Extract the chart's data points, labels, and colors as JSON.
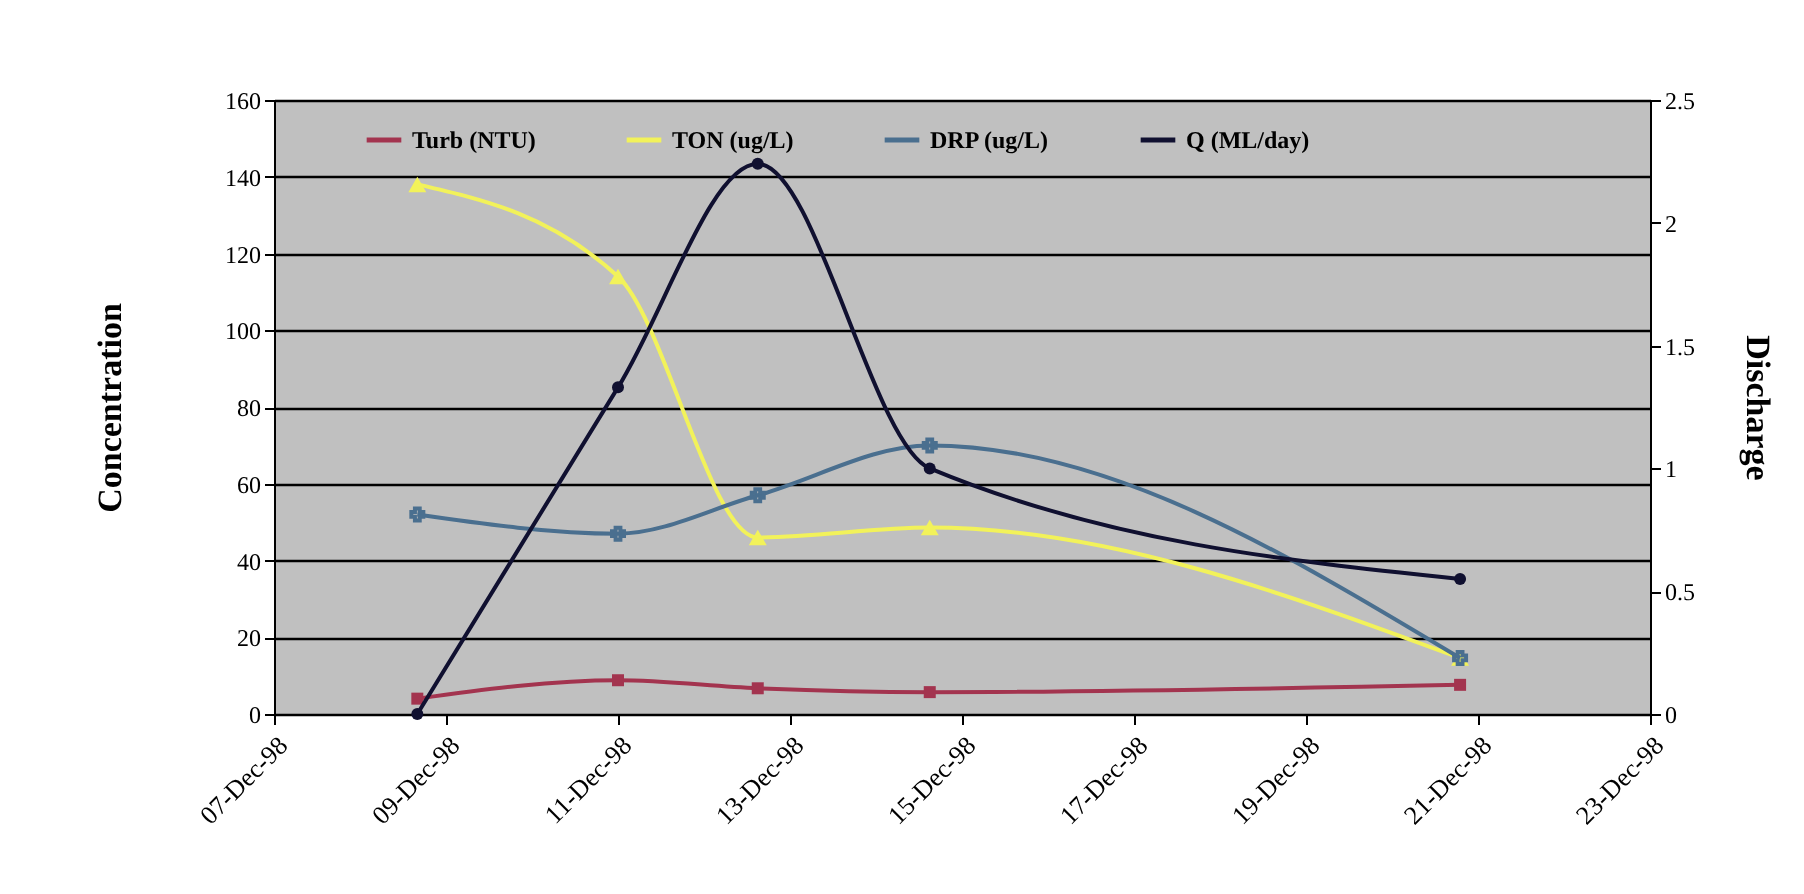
{
  "chart_data": {
    "type": "line",
    "ylabel": "Concentration",
    "y2label": "Discharge",
    "x": [
      "1998-12-08T16:00",
      "1998-12-11T00:00",
      "1998-12-12T15:00",
      "1998-12-14T15:00",
      "1998-12-20T19:00"
    ],
    "series": [
      {
        "name": "Turb (NTU)",
        "color": "#a3344f",
        "marker": "square",
        "values": [
          4,
          8.8,
          6.7,
          5.7,
          7.6
        ]
      },
      {
        "name": "TON (ug/L)",
        "color": "#f2f25a",
        "marker": "triangle",
        "values": [
          138,
          114,
          46,
          48.6,
          14.6
        ]
      },
      {
        "name": "DRP (ug/L)",
        "color": "#4a6f8f",
        "marker": "cross",
        "values": [
          52,
          47,
          57,
          70,
          14.6
        ]
      },
      {
        "name": "Q (ML/day)",
        "color": "#101030",
        "marker": "circle",
        "axis": "y2",
        "values": [
          0,
          1.33,
          2.24,
          1.0,
          0.55
        ]
      }
    ],
    "xlim": [
      "1998-12-07",
      "1998-12-23"
    ],
    "xticks": [
      {
        "value": "1998-12-07",
        "label": "07-Dec-98"
      },
      {
        "value": "1998-12-09",
        "label": "09-Dec-98"
      },
      {
        "value": "1998-12-11",
        "label": "11-Dec-98"
      },
      {
        "value": "1998-12-13",
        "label": "13-Dec-98"
      },
      {
        "value": "1998-12-15",
        "label": "15-Dec-98"
      },
      {
        "value": "1998-12-17",
        "label": "17-Dec-98"
      },
      {
        "value": "1998-12-19",
        "label": "19-Dec-98"
      },
      {
        "value": "1998-12-21",
        "label": "21-Dec-98"
      },
      {
        "value": "1998-12-23",
        "label": "23-Dec-98"
      }
    ],
    "ylim": [
      0,
      160
    ],
    "yticks": [
      0,
      20,
      40,
      60,
      80,
      100,
      120,
      140,
      160
    ],
    "y2lim": [
      0,
      2.5
    ],
    "y2ticks": [
      0,
      0.5,
      1,
      1.5,
      2,
      2.5
    ],
    "grid": "y",
    "legend": "top",
    "line_style": "solid"
  }
}
